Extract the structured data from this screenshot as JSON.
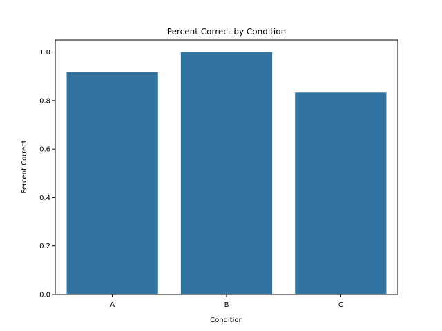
{
  "chart_data": {
    "type": "bar",
    "title": "Percent Correct by Condition",
    "xlabel": "Condition",
    "ylabel": "Percent Correct",
    "categories": [
      "A",
      "B",
      "C"
    ],
    "values": [
      0.917,
      1.0,
      0.833
    ],
    "ylim": [
      0,
      1.05
    ],
    "yticks": [
      "0.0",
      "0.2",
      "0.4",
      "0.6",
      "0.8",
      "1.0"
    ],
    "grid": false,
    "legend": "none",
    "bar_color": "#3274a1"
  }
}
